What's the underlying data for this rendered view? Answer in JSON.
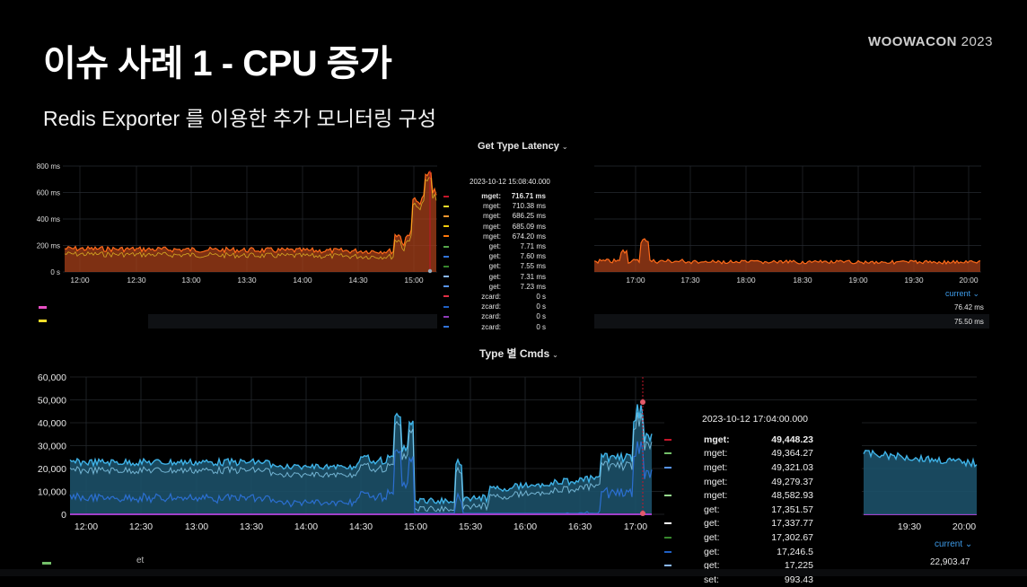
{
  "slide": {
    "title": "이슈 사례 1 - CPU 증가",
    "subtitle": "Redis Exporter 를 이용한 추가 모니터링 구성",
    "brand_word": "WOOWACON",
    "brand_year": "2023"
  },
  "latency_panel": {
    "title": "Get Type Latency",
    "y_ticks": [
      "800 ms",
      "600 ms",
      "400 ms",
      "200 ms",
      "0 s"
    ],
    "x_ticks_left": [
      "12:00",
      "12:30",
      "13:00",
      "13:30",
      "14:00",
      "14:30",
      "15:00"
    ],
    "x_ticks_right": [
      "17:00",
      "17:30",
      "18:00",
      "18:30",
      "19:00",
      "19:30",
      "20:00"
    ],
    "tooltip": {
      "time": "2023-10-12 15:08:40.000",
      "rows": [
        {
          "key": "mget:",
          "value": "716.71 ms",
          "color": "#c4162a",
          "bold": true
        },
        {
          "key": "mget:",
          "value": "710.38 ms",
          "color": "#fade2a"
        },
        {
          "key": "mget:",
          "value": "686.25 ms",
          "color": "#ff9830"
        },
        {
          "key": "mget:",
          "value": "685.09 ms",
          "color": "#f2cc0c"
        },
        {
          "key": "mget:",
          "value": "674.20 ms",
          "color": "#ff780a"
        },
        {
          "key": "get:",
          "value": "7.71 ms",
          "color": "#56a64b"
        },
        {
          "key": "get:",
          "value": "7.60 ms",
          "color": "#3274d9"
        },
        {
          "key": "get:",
          "value": "7.55 ms",
          "color": "#37872d"
        },
        {
          "key": "get:",
          "value": "7.31 ms",
          "color": "#8ab8ff"
        },
        {
          "key": "get:",
          "value": "7.23 ms",
          "color": "#5794f2"
        },
        {
          "key": "zcard:",
          "value": "0 s",
          "color": "#e02f44"
        },
        {
          "key": "zcard:",
          "value": "0 s",
          "color": "#1f60c4"
        },
        {
          "key": "zcard:",
          "value": "0 s",
          "color": "#8f3bb8"
        },
        {
          "key": "zcard:",
          "value": "0 s",
          "color": "#3274d9"
        }
      ]
    },
    "legend_current": "current",
    "legend_values": [
      "76.42 ms",
      "75.50 ms"
    ],
    "legend_colors": [
      "#e84fc4",
      "#fade2a"
    ]
  },
  "cmds_panel": {
    "title": "Type 별 Cmds",
    "y_ticks": [
      "60,000",
      "50,000",
      "40,000",
      "30,000",
      "20,000",
      "10,000",
      "0"
    ],
    "x_ticks_left": [
      "12:00",
      "12:30",
      "13:00",
      "13:30",
      "14:00",
      "14:30",
      "15:00",
      "15:30",
      "16:00",
      "16:30",
      "17:00"
    ],
    "x_ticks_right": [
      "19:30",
      "20:00"
    ],
    "tooltip": {
      "time": "2023-10-12 17:04:00.000",
      "rows": [
        {
          "key": "mget:",
          "value": "49,448.23",
          "color": "#c4162a",
          "bold": true
        },
        {
          "key": "mget:",
          "value": "49,364.27",
          "color": "#73bf69"
        },
        {
          "key": "mget:",
          "value": "49,321.03",
          "color": "#5794f2"
        },
        {
          "key": "mget:",
          "value": "49,279.37",
          "color": "#000000"
        },
        {
          "key": "mget:",
          "value": "48,582.93",
          "color": "#96d98d"
        },
        {
          "key": "get:",
          "value": "17,351.57",
          "color": "#000000"
        },
        {
          "key": "get:",
          "value": "17,337.77",
          "color": "#ffffff"
        },
        {
          "key": "get:",
          "value": "17,302.67",
          "color": "#37872d"
        },
        {
          "key": "get:",
          "value": "17,246.5",
          "color": "#1f60c4"
        },
        {
          "key": "get:",
          "value": "17,225",
          "color": "#8ab8ff"
        },
        {
          "key": "set:",
          "value": "993.43",
          "color": "#000000"
        }
      ]
    },
    "legend_current": "current",
    "legend_value": "22,903.47",
    "legend_label": "et",
    "legend_color": "#73bf69"
  },
  "colors": {
    "background": "#000000",
    "latency_line": "#ff6a1a",
    "latency_fill": "#c8451a",
    "cmds_line": "#3fb3e8",
    "cmds_fill": "#1e5a74",
    "link_blue": "#3d9be9"
  }
}
